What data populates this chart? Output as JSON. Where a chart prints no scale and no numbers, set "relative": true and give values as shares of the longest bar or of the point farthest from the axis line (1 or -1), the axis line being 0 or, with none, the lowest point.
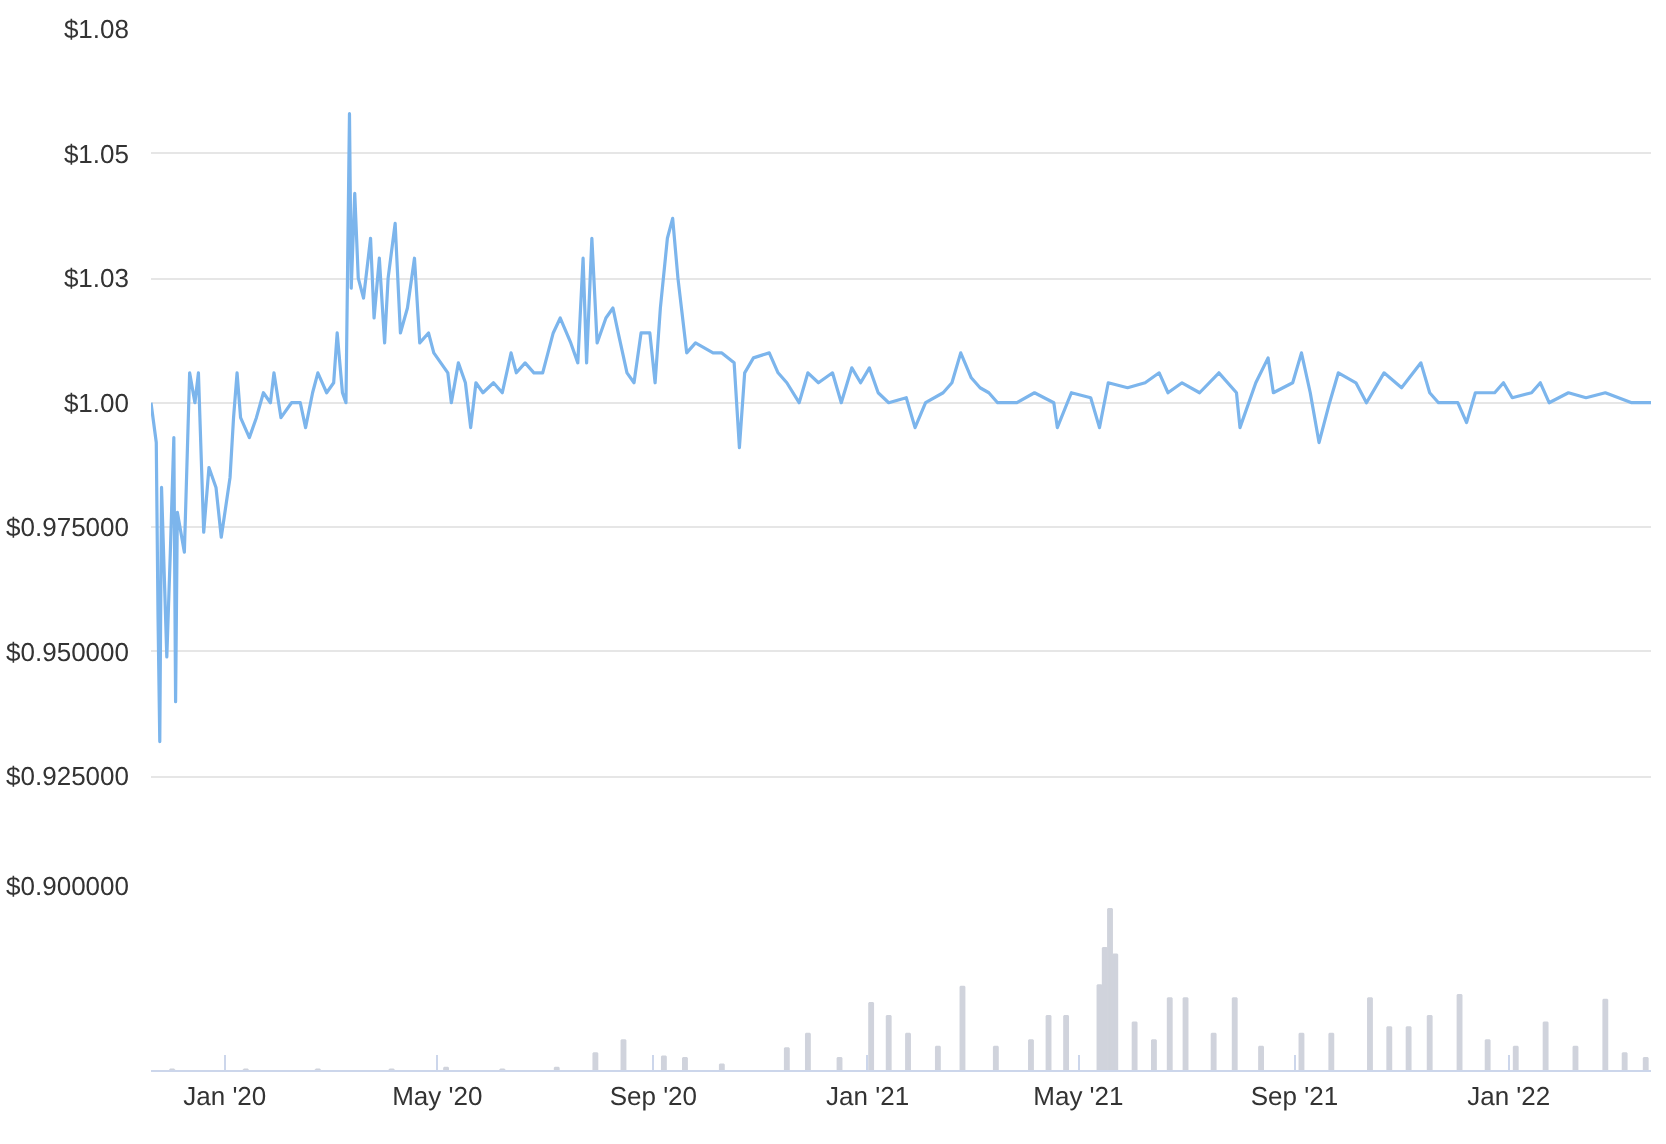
{
  "chart_data": [
    {
      "type": "line",
      "tick_labels": "y",
      "grid": "y",
      "xlim": [
        "2019-11-20",
        "2022-03-23"
      ],
      "ylim": [
        0.9,
        1.075
      ],
      "yticks": [
        {
          "value": 0.9,
          "label": "$0.900000"
        },
        {
          "value": 0.925,
          "label": "$0.925000"
        },
        {
          "value": 0.95,
          "label": "$0.950000"
        },
        {
          "value": 0.975,
          "label": "$0.975000"
        },
        {
          "value": 1.0,
          "label": "$1.00"
        },
        {
          "value": 1.025,
          "label": "$1.03"
        },
        {
          "value": 1.05,
          "label": "$1.05"
        },
        {
          "value": 1.075,
          "label": "$1.08"
        }
      ],
      "series": [
        {
          "color": "#7cb5ec",
          "x": [
            "2019-11-20",
            "2019-11-23",
            "2019-11-24",
            "2019-11-25",
            "2019-11-26",
            "2019-11-29",
            "2019-12-01",
            "2019-12-03",
            "2019-12-04",
            "2019-12-05",
            "2019-12-09",
            "2019-12-12",
            "2019-12-15",
            "2019-12-17",
            "2019-12-20",
            "2019-12-23",
            "2019-12-27",
            "2019-12-30",
            "2020-01-04",
            "2020-01-06",
            "2020-01-08",
            "2020-01-10",
            "2020-01-15",
            "2020-01-19",
            "2020-01-23",
            "2020-01-27",
            "2020-01-29",
            "2020-02-02",
            "2020-02-08",
            "2020-02-13",
            "2020-02-16",
            "2020-02-20",
            "2020-02-23",
            "2020-02-28",
            "2020-03-03",
            "2020-03-05",
            "2020-03-08",
            "2020-03-10",
            "2020-03-12",
            "2020-03-13",
            "2020-03-15",
            "2020-03-17",
            "2020-03-20",
            "2020-03-24",
            "2020-03-26",
            "2020-03-29",
            "2020-04-01",
            "2020-04-03",
            "2020-04-07",
            "2020-04-10",
            "2020-04-14",
            "2020-04-18",
            "2020-04-21",
            "2020-04-26",
            "2020-04-29",
            "2020-05-07",
            "2020-05-09",
            "2020-05-13",
            "2020-05-17",
            "2020-05-20",
            "2020-05-23",
            "2020-05-27",
            "2020-06-02",
            "2020-06-07",
            "2020-06-12",
            "2020-06-15",
            "2020-06-20",
            "2020-06-25",
            "2020-06-30",
            "2020-07-06",
            "2020-07-10",
            "2020-07-16",
            "2020-07-20",
            "2020-07-23",
            "2020-07-25",
            "2020-07-28",
            "2020-07-31",
            "2020-08-05",
            "2020-08-09",
            "2020-08-12",
            "2020-08-17",
            "2020-08-21",
            "2020-08-25",
            "2020-08-30",
            "2020-09-02",
            "2020-09-05",
            "2020-09-09",
            "2020-09-12",
            "2020-09-15",
            "2020-09-17",
            "2020-09-20",
            "2020-09-25",
            "2020-09-30",
            "2020-10-05",
            "2020-10-10",
            "2020-10-17",
            "2020-10-20",
            "2020-10-23",
            "2020-10-28",
            "2020-11-06",
            "2020-11-11",
            "2020-11-16",
            "2020-11-23",
            "2020-11-28",
            "2020-12-04",
            "2020-12-12",
            "2020-12-17",
            "2020-12-23",
            "2020-12-28",
            "2021-01-02",
            "2021-01-07",
            "2021-01-13",
            "2021-01-23",
            "2021-01-28",
            "2021-02-03",
            "2021-02-13",
            "2021-02-18",
            "2021-02-23",
            "2021-03-01",
            "2021-03-06",
            "2021-03-11",
            "2021-03-16",
            "2021-03-27",
            "2021-04-06",
            "2021-04-17",
            "2021-04-19",
            "2021-04-27",
            "2021-05-08",
            "2021-05-13",
            "2021-05-18",
            "2021-05-29",
            "2021-06-08",
            "2021-06-16",
            "2021-06-21",
            "2021-06-29",
            "2021-07-09",
            "2021-07-20",
            "2021-07-30",
            "2021-08-01",
            "2021-08-10",
            "2021-08-17",
            "2021-08-20",
            "2021-08-31",
            "2021-09-05",
            "2021-09-10",
            "2021-09-15",
            "2021-09-21",
            "2021-09-26",
            "2021-10-06",
            "2021-10-12",
            "2021-10-22",
            "2021-11-01",
            "2021-11-12",
            "2021-11-17",
            "2021-11-22",
            "2021-12-03",
            "2021-12-08",
            "2021-12-13",
            "2021-12-24",
            "2021-12-29",
            "2022-01-03",
            "2022-01-14",
            "2022-01-19",
            "2022-01-24",
            "2022-02-04",
            "2022-02-14",
            "2022-02-25",
            "2022-03-12",
            "2022-03-23"
          ],
          "values": [
            1.0,
            0.992,
            0.957,
            0.932,
            0.983,
            0.949,
            0.97,
            0.993,
            0.94,
            0.978,
            0.97,
            1.006,
            1.0,
            1.006,
            0.974,
            0.987,
            0.983,
            0.973,
            0.985,
            0.997,
            1.006,
            0.997,
            0.993,
            0.997,
            1.002,
            1.0,
            1.006,
            0.997,
            1.0,
            1.0,
            0.995,
            1.002,
            1.006,
            1.002,
            1.004,
            1.014,
            1.002,
            1.0,
            1.058,
            1.023,
            1.042,
            1.025,
            1.021,
            1.033,
            1.017,
            1.029,
            1.012,
            1.025,
            1.036,
            1.014,
            1.019,
            1.029,
            1.012,
            1.014,
            1.01,
            1.006,
            1.0,
            1.008,
            1.004,
            0.995,
            1.004,
            1.002,
            1.004,
            1.002,
            1.01,
            1.006,
            1.008,
            1.006,
            1.006,
            1.014,
            1.017,
            1.012,
            1.008,
            1.029,
            1.008,
            1.033,
            1.012,
            1.017,
            1.019,
            1.014,
            1.006,
            1.004,
            1.014,
            1.014,
            1.004,
            1.019,
            1.033,
            1.037,
            1.025,
            1.019,
            1.01,
            1.012,
            1.011,
            1.01,
            1.01,
            1.008,
            0.991,
            1.006,
            1.009,
            1.01,
            1.006,
            1.004,
            1.0,
            1.006,
            1.004,
            1.006,
            1.0,
            1.007,
            1.004,
            1.007,
            1.002,
            1.0,
            1.001,
            0.995,
            1.0,
            1.002,
            1.004,
            1.01,
            1.005,
            1.003,
            1.002,
            1.0,
            1.0,
            1.002,
            1.0,
            0.995,
            1.002,
            1.001,
            0.995,
            1.004,
            1.003,
            1.004,
            1.006,
            1.002,
            1.004,
            1.002,
            1.006,
            1.002,
            0.995,
            1.004,
            1.009,
            1.002,
            1.004,
            1.01,
            1.002,
            0.992,
            1.0,
            1.006,
            1.004,
            1.0,
            1.006,
            1.003,
            1.008,
            1.002,
            1.0,
            1.0,
            0.996,
            1.002,
            1.002,
            1.004,
            1.001,
            1.002,
            1.004,
            1.0,
            1.002,
            1.001,
            1.002,
            1.0,
            1.0
          ]
        }
      ]
    },
    {
      "type": "bar",
      "relative": true,
      "tick_labels": "x",
      "xlim": [
        "2019-11-20",
        "2022-03-23"
      ],
      "xticks": [
        {
          "value": "2020-01-01",
          "label": "Jan '20"
        },
        {
          "value": "2020-05-01",
          "label": "May '20"
        },
        {
          "value": "2020-09-01",
          "label": "Sep '20"
        },
        {
          "value": "2021-01-01",
          "label": "Jan '21"
        },
        {
          "value": "2021-05-01",
          "label": "May '21"
        },
        {
          "value": "2021-09-01",
          "label": "Sep '21"
        },
        {
          "value": "2022-01-01",
          "label": "Jan '22"
        }
      ],
      "series": [
        {
          "color": "#d0d3dc",
          "x": [
            "2019-12-02",
            "2020-01-13",
            "2020-02-23",
            "2020-04-05",
            "2020-05-06",
            "2020-06-07",
            "2020-07-08",
            "2020-07-30",
            "2020-08-15",
            "2020-09-07",
            "2020-09-19",
            "2020-10-10",
            "2020-11-16",
            "2020-11-28",
            "2020-12-16",
            "2021-01-03",
            "2021-01-13",
            "2021-01-24",
            "2021-02-10",
            "2021-02-24",
            "2021-03-15",
            "2021-04-04",
            "2021-04-14",
            "2021-04-24",
            "2021-05-13",
            "2021-05-16",
            "2021-05-19",
            "2021-05-22",
            "2021-06-02",
            "2021-06-13",
            "2021-06-22",
            "2021-07-01",
            "2021-07-17",
            "2021-07-29",
            "2021-08-13",
            "2021-09-05",
            "2021-09-22",
            "2021-10-14",
            "2021-10-25",
            "2021-11-05",
            "2021-11-17",
            "2021-12-04",
            "2021-12-20",
            "2022-01-05",
            "2022-01-22",
            "2022-02-08",
            "2022-02-25",
            "2022-03-08",
            "2022-03-20"
          ],
          "values": [
            0.01,
            0.01,
            0.01,
            0.01,
            0.02,
            0.01,
            0.02,
            0.11,
            0.19,
            0.09,
            0.08,
            0.04,
            0.14,
            0.23,
            0.08,
            0.42,
            0.34,
            0.23,
            0.15,
            0.52,
            0.15,
            0.19,
            0.34,
            0.34,
            0.53,
            0.76,
            1.0,
            0.72,
            0.3,
            0.19,
            0.45,
            0.45,
            0.23,
            0.45,
            0.15,
            0.23,
            0.23,
            0.45,
            0.27,
            0.27,
            0.34,
            0.47,
            0.19,
            0.15,
            0.3,
            0.15,
            0.44,
            0.11,
            0.08
          ]
        }
      ]
    }
  ]
}
